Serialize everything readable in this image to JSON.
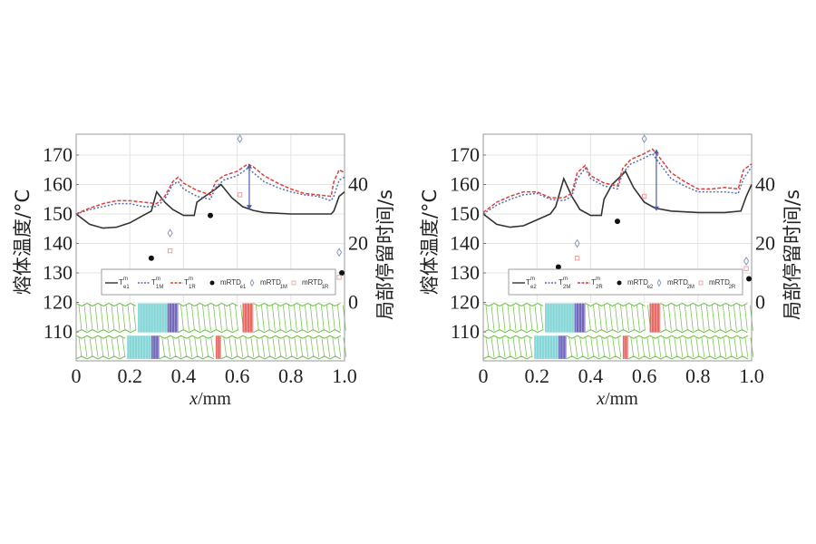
{
  "chart_data": [
    {
      "type": "line",
      "title": "",
      "xlabel": "x/mm",
      "ylabel": "熔体温度/°C",
      "y2label": "局部停留时间/s",
      "xlim": [
        0,
        1.0
      ],
      "ylim": [
        100,
        177
      ],
      "y2_ticks": [
        0,
        20,
        40
      ],
      "y2_mapping": "0 s at 120 °C, 1 s per 1 °C",
      "xticks": [
        "0",
        "0.2",
        "0.4",
        "0.6",
        "0.8",
        "1.0"
      ],
      "yticks": [
        "110",
        "120",
        "130",
        "140",
        "150",
        "160",
        "170"
      ],
      "grid": true,
      "legend_position": "lower-center",
      "series": [
        {
          "name": "T_e1^m",
          "style": "solid",
          "color": "#333333",
          "x": [
            0,
            0.05,
            0.1,
            0.15,
            0.2,
            0.25,
            0.28,
            0.3,
            0.33,
            0.36,
            0.4,
            0.44,
            0.45,
            0.48,
            0.52,
            0.54,
            0.58,
            0.62,
            0.66,
            0.7,
            0.8,
            0.9,
            0.95,
            0.96,
            0.98,
            1.0
          ],
          "y": [
            150,
            146.5,
            145.2,
            145.5,
            147,
            149.5,
            151,
            157.5,
            154,
            151.5,
            149.5,
            149.5,
            154,
            156,
            158.5,
            160,
            155.5,
            152.5,
            151.2,
            150.5,
            150,
            150,
            150,
            151,
            156,
            157.5
          ]
        },
        {
          "name": "T_1M^m",
          "style": "dotted",
          "color": "#5a6fa8",
          "x": [
            0,
            0.05,
            0.1,
            0.15,
            0.2,
            0.25,
            0.3,
            0.33,
            0.36,
            0.38,
            0.4,
            0.45,
            0.5,
            0.52,
            0.55,
            0.6,
            0.64,
            0.66,
            0.7,
            0.75,
            0.8,
            0.85,
            0.9,
            0.95,
            0.96,
            0.98,
            1.0
          ],
          "y": [
            150,
            151.5,
            152.5,
            153.5,
            153.5,
            152.5,
            152.5,
            155,
            160,
            161,
            158.5,
            156,
            155,
            159,
            161.5,
            163,
            165.5,
            164,
            161,
            159,
            157.5,
            156.5,
            156,
            154.5,
            156,
            161.5,
            162.5
          ]
        },
        {
          "name": "T_1R^m",
          "style": "dashed",
          "color": "#d9413d",
          "x": [
            0,
            0.05,
            0.1,
            0.15,
            0.2,
            0.25,
            0.3,
            0.33,
            0.36,
            0.38,
            0.4,
            0.45,
            0.5,
            0.52,
            0.55,
            0.6,
            0.64,
            0.66,
            0.7,
            0.75,
            0.8,
            0.85,
            0.9,
            0.95,
            0.96,
            0.98,
            1.0
          ],
          "y": [
            150,
            152,
            153.5,
            154.5,
            154.5,
            154,
            153.5,
            156,
            161,
            162.5,
            160.5,
            158,
            156.5,
            161,
            163,
            164.5,
            167,
            166,
            163,
            160.5,
            158.5,
            157,
            156.5,
            156,
            161,
            165,
            164
          ]
        },
        {
          "name": "mRTD_e1",
          "type": "scatter",
          "marker": "filled-circle",
          "color": "#111111",
          "axis": "right",
          "x": [
            0.28,
            0.5,
            0.99
          ],
          "y": [
            15,
            29.5,
            10
          ]
        },
        {
          "name": "mRTD_1M",
          "type": "scatter",
          "marker": "open-diamond",
          "color": "#8090b8",
          "axis": "right",
          "x": [
            0.35,
            0.61,
            0.98
          ],
          "y": [
            23.5,
            55.5,
            17
          ]
        },
        {
          "name": "mRTD_1R",
          "type": "scatter",
          "marker": "open-square",
          "color": "#e39a9a",
          "axis": "right",
          "x": [
            0.35,
            0.61,
            0.98
          ],
          "y": [
            17.5,
            36.5,
            8.5
          ]
        }
      ],
      "annotations": [
        {
          "type": "double-arrow",
          "x": 0.645,
          "y_from": 151.5,
          "y_to": 167,
          "color": "#4a5fa5"
        }
      ],
      "screw_diagram": {
        "rows": 2,
        "row1_segments": [
          {
            "from": 0,
            "to": 0.23,
            "kind": "conveying",
            "color": "#7cc35a"
          },
          {
            "from": 0.23,
            "to": 0.34,
            "kind": "kneading",
            "color": "#6fcfd0"
          },
          {
            "from": 0.34,
            "to": 0.38,
            "kind": "kneading-reverse",
            "color": "#5a4fb0"
          },
          {
            "from": 0.38,
            "to": 0.62,
            "kind": "conveying",
            "color": "#7cc35a"
          },
          {
            "from": 0.62,
            "to": 0.66,
            "kind": "reverse",
            "color": "#e2504a"
          },
          {
            "from": 0.66,
            "to": 1.0,
            "kind": "conveying",
            "color": "#7cc35a"
          }
        ],
        "row2_segments": [
          {
            "from": 0,
            "to": 0.19,
            "kind": "conveying",
            "color": "#7cc35a"
          },
          {
            "from": 0.19,
            "to": 0.28,
            "kind": "kneading",
            "color": "#6fcfd0"
          },
          {
            "from": 0.28,
            "to": 0.31,
            "kind": "kneading-reverse",
            "color": "#5a4fb0"
          },
          {
            "from": 0.31,
            "to": 0.52,
            "kind": "conveying",
            "color": "#7cc35a"
          },
          {
            "from": 0.52,
            "to": 0.54,
            "kind": "reverse",
            "color": "#e2504a"
          },
          {
            "from": 0.54,
            "to": 1.0,
            "kind": "conveying",
            "color": "#7cc35a"
          }
        ]
      }
    },
    {
      "type": "line",
      "title": "",
      "xlabel": "x/mm",
      "ylabel": "熔体温度/°C",
      "y2label": "局部停留时间/s",
      "xlim": [
        0,
        1.0
      ],
      "ylim": [
        100,
        177
      ],
      "y2_ticks": [
        0,
        20,
        40
      ],
      "y2_mapping": "0 s at 120 °C, 1 s per 1 °C",
      "xticks": [
        "0",
        "0.2",
        "0.4",
        "0.6",
        "0.8",
        "1.0"
      ],
      "yticks": [
        "110",
        "120",
        "130",
        "140",
        "150",
        "160",
        "170"
      ],
      "grid": true,
      "legend_position": "lower-center",
      "series": [
        {
          "name": "T_e2^m",
          "style": "solid",
          "color": "#333333",
          "x": [
            0,
            0.05,
            0.1,
            0.15,
            0.2,
            0.25,
            0.27,
            0.3,
            0.33,
            0.36,
            0.4,
            0.44,
            0.45,
            0.48,
            0.52,
            0.53,
            0.56,
            0.6,
            0.64,
            0.7,
            0.8,
            0.9,
            0.96,
            0.98,
            1.0
          ],
          "y": [
            150,
            146.5,
            145.5,
            146,
            148,
            150,
            152.5,
            162,
            156,
            151.5,
            149.5,
            149.5,
            155,
            160,
            163.5,
            164.5,
            159,
            154,
            152,
            151,
            150.5,
            150.5,
            151,
            156,
            160
          ]
        },
        {
          "name": "T_2M^m",
          "style": "dotted",
          "color": "#5a6fa8",
          "x": [
            0,
            0.05,
            0.1,
            0.15,
            0.2,
            0.25,
            0.3,
            0.33,
            0.35,
            0.38,
            0.4,
            0.45,
            0.5,
            0.52,
            0.55,
            0.6,
            0.63,
            0.65,
            0.7,
            0.75,
            0.8,
            0.85,
            0.9,
            0.95,
            0.97,
            1.0
          ],
          "y": [
            150,
            153,
            155,
            156.5,
            157,
            155,
            154.5,
            156,
            162,
            165.5,
            162,
            159.5,
            158.5,
            164,
            167,
            169,
            170.5,
            168,
            162,
            159.5,
            157.5,
            157.5,
            157.5,
            157,
            162,
            166
          ]
        },
        {
          "name": "T_2R^m",
          "style": "dashed",
          "color": "#d9413d",
          "x": [
            0,
            0.05,
            0.1,
            0.15,
            0.2,
            0.25,
            0.3,
            0.33,
            0.35,
            0.38,
            0.4,
            0.45,
            0.5,
            0.52,
            0.55,
            0.6,
            0.63,
            0.65,
            0.7,
            0.75,
            0.8,
            0.85,
            0.9,
            0.95,
            0.97,
            1.0
          ],
          "y": [
            150.5,
            154,
            156,
            157.5,
            157.5,
            155.5,
            155.5,
            157,
            164,
            166.5,
            163,
            160.5,
            159.5,
            165.5,
            168.5,
            170.5,
            172,
            170,
            164,
            161,
            158.5,
            158.5,
            159,
            158.5,
            165,
            167
          ]
        },
        {
          "name": "mRTD_e2",
          "type": "scatter",
          "marker": "filled-circle",
          "color": "#111111",
          "axis": "right",
          "x": [
            0.28,
            0.5,
            0.99
          ],
          "y": [
            12,
            27.5,
            8
          ]
        },
        {
          "name": "mRTD_2M",
          "type": "scatter",
          "marker": "open-diamond",
          "color": "#8090b8",
          "axis": "right",
          "x": [
            0.35,
            0.6,
            0.98
          ],
          "y": [
            20,
            55.5,
            14
          ]
        },
        {
          "name": "mRTD_2R",
          "type": "scatter",
          "marker": "open-square",
          "color": "#e39a9a",
          "axis": "right",
          "x": [
            0.35,
            0.6,
            0.98
          ],
          "y": [
            15,
            36,
            11.5
          ]
        }
      ],
      "annotations": [
        {
          "type": "double-arrow",
          "x": 0.645,
          "y_from": 151,
          "y_to": 172,
          "color": "#4a5fa5"
        }
      ],
      "screw_diagram": {
        "rows": 2,
        "row1_segments": [
          {
            "from": 0,
            "to": 0.23,
            "kind": "conveying",
            "color": "#7cc35a"
          },
          {
            "from": 0.23,
            "to": 0.34,
            "kind": "kneading",
            "color": "#6fcfd0"
          },
          {
            "from": 0.34,
            "to": 0.38,
            "kind": "kneading-reverse",
            "color": "#5a4fb0"
          },
          {
            "from": 0.38,
            "to": 0.62,
            "kind": "conveying",
            "color": "#7cc35a"
          },
          {
            "from": 0.62,
            "to": 0.66,
            "kind": "reverse",
            "color": "#e2504a"
          },
          {
            "from": 0.66,
            "to": 1.0,
            "kind": "conveying",
            "color": "#7cc35a"
          }
        ],
        "row2_segments": [
          {
            "from": 0,
            "to": 0.19,
            "kind": "conveying",
            "color": "#7cc35a"
          },
          {
            "from": 0.19,
            "to": 0.28,
            "kind": "kneading",
            "color": "#6fcfd0"
          },
          {
            "from": 0.28,
            "to": 0.31,
            "kind": "kneading-reverse",
            "color": "#5a4fb0"
          },
          {
            "from": 0.31,
            "to": 0.52,
            "kind": "conveying",
            "color": "#7cc35a"
          },
          {
            "from": 0.52,
            "to": 0.54,
            "kind": "reverse",
            "color": "#e2504a"
          },
          {
            "from": 0.54,
            "to": 1.0,
            "kind": "conveying",
            "color": "#7cc35a"
          }
        ]
      }
    }
  ],
  "legends": [
    {
      "items": [
        {
          "base": "T",
          "sup": "m",
          "sub": "e1"
        },
        {
          "base": "T",
          "sup": "m",
          "sub": "1M"
        },
        {
          "base": "T",
          "sup": "m",
          "sub": "1R"
        },
        {
          "base": "mRTD",
          "sup": "",
          "sub": "e1"
        },
        {
          "base": "mRTD",
          "sup": "",
          "sub": "1M"
        },
        {
          "base": "mRTD",
          "sup": "",
          "sub": "1R"
        }
      ]
    },
    {
      "items": [
        {
          "base": "T",
          "sup": "m",
          "sub": "e2"
        },
        {
          "base": "T",
          "sup": "m",
          "sub": "2M"
        },
        {
          "base": "T",
          "sup": "m",
          "sub": "2R"
        },
        {
          "base": "mRTD",
          "sup": "",
          "sub": "e2"
        },
        {
          "base": "mRTD",
          "sup": "",
          "sub": "2M"
        },
        {
          "base": "mRTD",
          "sup": "",
          "sub": "2R"
        }
      ]
    }
  ]
}
